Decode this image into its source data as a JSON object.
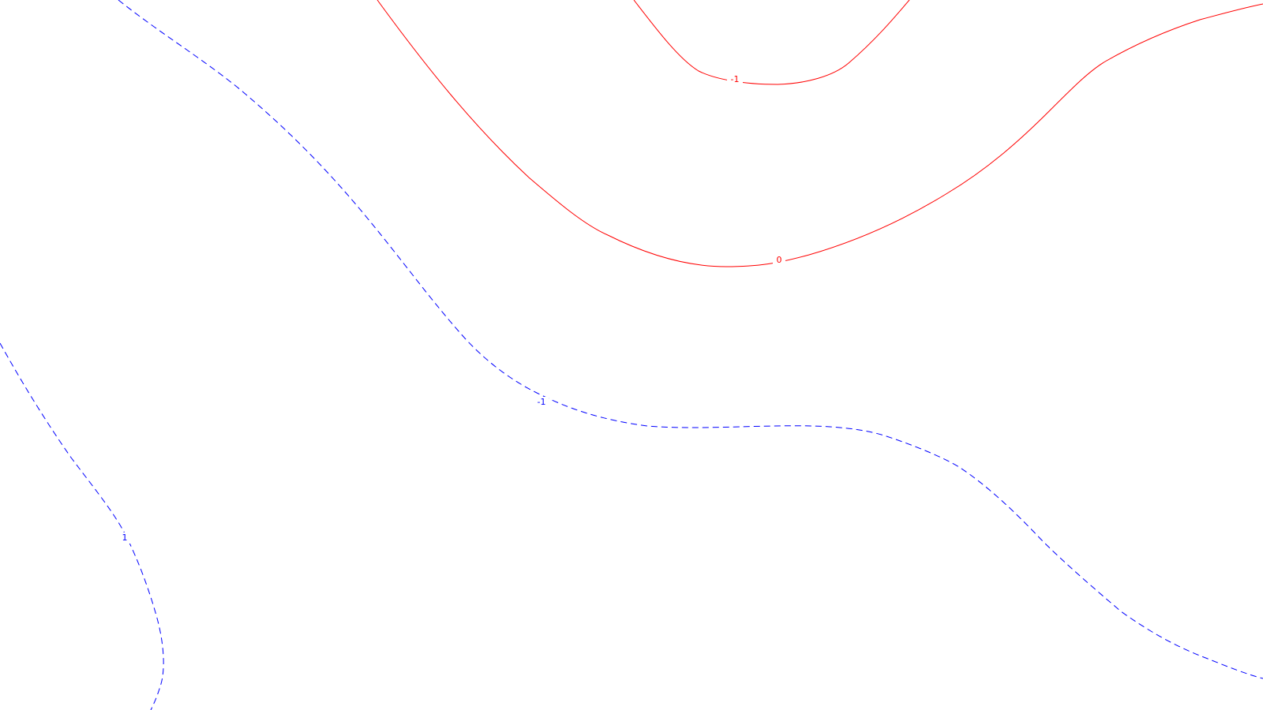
{
  "colors": {
    "background": "#ffffff",
    "positive_contour": "#ff0000",
    "negative_contour": "#0000ff"
  },
  "contours": [
    {
      "id": "red-contour-upper",
      "level_label": "-1",
      "color": "#ff0000",
      "style": "solid"
    },
    {
      "id": "red-contour-lower",
      "level_label": "0",
      "color": "#ff0000",
      "style": "solid"
    },
    {
      "id": "blue-contour-diagonal",
      "level_label": "-1",
      "color": "#0000ff",
      "style": "dashed"
    },
    {
      "id": "blue-contour-left",
      "level_label": "1",
      "color": "#0000ff",
      "style": "dashed"
    }
  ]
}
